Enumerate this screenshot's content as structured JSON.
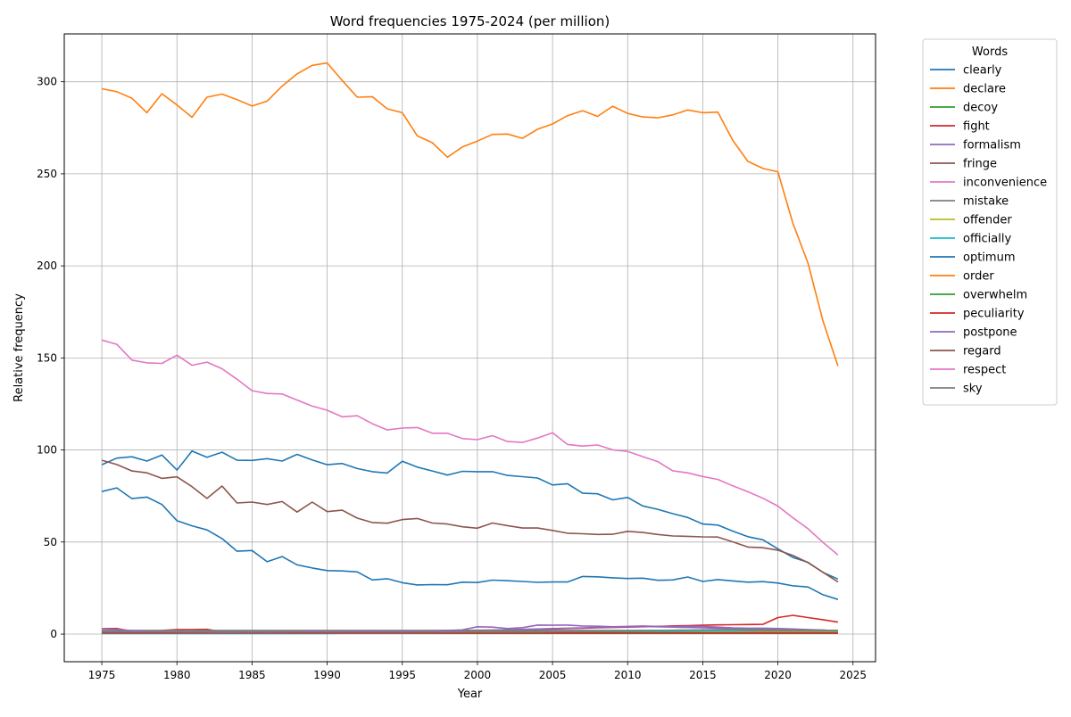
{
  "chart_data": {
    "type": "line",
    "title": "Word frequencies 1975-2024 (per million)",
    "xlabel": "Year",
    "ylabel": "Relative frequency",
    "xlim": [
      1972.5,
      2026.5
    ],
    "ylim": [
      -15,
      326
    ],
    "xticks": [
      1975,
      1980,
      1985,
      1990,
      1995,
      2000,
      2005,
      2010,
      2015,
      2020,
      2025
    ],
    "yticks": [
      0,
      50,
      100,
      150,
      200,
      250,
      300
    ],
    "grid": true,
    "legend": {
      "title": "Words",
      "placement": "outside-right"
    },
    "x": [
      1975,
      1976,
      1977,
      1978,
      1979,
      1980,
      1981,
      1982,
      1983,
      1984,
      1985,
      1986,
      1987,
      1988,
      1989,
      1990,
      1991,
      1992,
      1993,
      1994,
      1995,
      1996,
      1997,
      1998,
      1999,
      2000,
      2001,
      2002,
      2003,
      2004,
      2005,
      2006,
      2007,
      2008,
      2009,
      2010,
      2011,
      2012,
      2013,
      2014,
      2015,
      2016,
      2017,
      2018,
      2019,
      2020,
      2021,
      2022,
      2023,
      2024
    ],
    "series": [
      {
        "name": "clearly",
        "color": "#1f77b4",
        "values": [
          77.4,
          79.4,
          73.6,
          74.4,
          70.4,
          61.6,
          58.8,
          56.6,
          51.9,
          45.0,
          45.4,
          39.3,
          42.1,
          37.6,
          35.9,
          34.5,
          34.3,
          33.8,
          29.4,
          30.1,
          27.9,
          26.7,
          26.9,
          26.8,
          28.2,
          28.0,
          29.3,
          29.0,
          28.6,
          28.1,
          28.3,
          28.3,
          31.3,
          31.1,
          30.6,
          30.2,
          30.4,
          29.2,
          29.4,
          31.0,
          28.6,
          29.6,
          28.9,
          28.2,
          28.5,
          27.7,
          26.2,
          25.6,
          21.4,
          18.8
        ]
      },
      {
        "name": "declare",
        "color": "#ff7f0e",
        "values": [
          2.0,
          1.9,
          1.7,
          1.6,
          1.6,
          1.5,
          1.5,
          1.5,
          1.5,
          1.4,
          1.4,
          1.4,
          1.4,
          1.4,
          1.4,
          1.3,
          1.3,
          1.3,
          1.3,
          1.3,
          1.3,
          1.3,
          1.2,
          1.2,
          1.2,
          1.2,
          1.2,
          1.2,
          1.2,
          1.2,
          1.2,
          1.1,
          1.1,
          1.1,
          1.1,
          1.1,
          1.1,
          1.1,
          1.1,
          1.1,
          1.0,
          1.0,
          1.0,
          1.0,
          1.0,
          1.0,
          1.0,
          1.0,
          1.0,
          0.9
        ]
      },
      {
        "name": "decoy",
        "color": "#2ca02c",
        "values": [
          0.4,
          0.4,
          0.4,
          0.4,
          0.4,
          0.4,
          0.4,
          0.4,
          0.4,
          0.4,
          0.4,
          0.4,
          0.4,
          0.4,
          0.4,
          0.4,
          0.4,
          0.4,
          0.4,
          0.4,
          0.4,
          0.4,
          0.4,
          0.4,
          0.4,
          0.4,
          0.4,
          0.4,
          0.4,
          0.4,
          0.4,
          0.4,
          0.4,
          0.4,
          0.4,
          0.4,
          0.4,
          0.4,
          0.4,
          0.4,
          0.4,
          0.4,
          0.4,
          0.4,
          0.4,
          0.4,
          0.4,
          0.4,
          0.4,
          0.4
        ]
      },
      {
        "name": "fight",
        "color": "#d62728",
        "values": [
          3.0,
          3.0,
          1.5,
          1.0,
          2.0,
          2.5,
          2.5,
          2.6,
          1.2,
          0.8,
          0.9,
          0.8,
          0.8,
          0.9,
          1.0,
          1.0,
          1.2,
          1.5,
          1.6,
          1.6,
          1.6,
          1.7,
          1.8,
          1.9,
          2.0,
          2.1,
          2.2,
          2.3,
          2.5,
          2.6,
          2.8,
          3.0,
          3.2,
          3.4,
          3.6,
          3.8,
          4.0,
          4.2,
          4.4,
          4.6,
          4.8,
          5.0,
          5.1,
          5.2,
          5.3,
          9.0,
          10.2,
          9.0,
          7.8,
          6.5
        ]
      },
      {
        "name": "formalism",
        "color": "#9467bd",
        "values": [
          0.5,
          0.5,
          0.5,
          0.5,
          0.5,
          0.5,
          0.5,
          0.5,
          0.6,
          0.6,
          0.6,
          0.6,
          0.7,
          0.7,
          0.8,
          0.8,
          0.9,
          1.0,
          1.1,
          1.2,
          1.3,
          1.4,
          1.5,
          1.6,
          1.8,
          2.0,
          2.2,
          2.4,
          2.6,
          2.8,
          3.0,
          3.2,
          3.4,
          3.6,
          3.8,
          4.0,
          4.2,
          4.0,
          3.8,
          3.6,
          3.4,
          3.2,
          3.0,
          2.8,
          2.8,
          2.8,
          2.6,
          2.4,
          2.2,
          1.8
        ]
      },
      {
        "name": "fringe",
        "color": "#8c564b",
        "values": [
          1.5,
          1.5,
          1.5,
          1.5,
          1.5,
          1.5,
          1.5,
          1.5,
          1.5,
          1.5,
          1.5,
          1.5,
          1.5,
          1.6,
          1.6,
          1.6,
          1.6,
          1.6,
          1.6,
          1.6,
          1.6,
          1.6,
          1.7,
          1.7,
          1.7,
          1.7,
          1.7,
          1.7,
          1.7,
          1.7,
          1.7,
          1.8,
          1.8,
          1.8,
          1.8,
          1.8,
          1.8,
          1.8,
          1.8,
          1.8,
          1.8,
          1.9,
          1.9,
          1.9,
          1.9,
          1.9,
          1.9,
          1.9,
          1.9,
          1.9
        ]
      },
      {
        "name": "inconvenience",
        "color": "#e377c2",
        "values": [
          1.0,
          1.0,
          1.0,
          1.0,
          1.0,
          1.0,
          1.0,
          1.0,
          1.0,
          1.0,
          1.0,
          1.0,
          1.0,
          1.0,
          1.0,
          1.0,
          1.0,
          1.0,
          1.0,
          1.0,
          1.0,
          1.0,
          1.0,
          1.0,
          1.0,
          1.0,
          1.0,
          1.0,
          1.0,
          1.0,
          1.0,
          1.0,
          1.0,
          1.0,
          1.0,
          1.0,
          1.0,
          1.0,
          1.0,
          1.0,
          1.0,
          1.0,
          1.0,
          1.0,
          1.0,
          1.0,
          1.0,
          1.0,
          1.0,
          0.9
        ]
      },
      {
        "name": "mistake",
        "color": "#7f7f7f",
        "values": [
          2.0,
          2.0,
          2.0,
          2.0,
          2.0,
          2.0,
          2.0,
          2.0,
          2.0,
          2.0,
          2.0,
          2.0,
          2.0,
          2.0,
          2.0,
          2.0,
          2.0,
          2.0,
          2.0,
          2.0,
          2.0,
          2.0,
          2.0,
          2.0,
          2.0,
          2.0,
          2.0,
          2.0,
          2.0,
          2.0,
          2.0,
          2.0,
          2.0,
          2.0,
          2.0,
          2.0,
          2.0,
          2.0,
          2.0,
          2.0,
          2.0,
          2.0,
          2.0,
          2.0,
          2.0,
          2.0,
          2.0,
          2.0,
          2.0,
          2.0
        ]
      },
      {
        "name": "offender",
        "color": "#bcbd22",
        "values": [
          1.0,
          1.0,
          1.0,
          1.0,
          1.0,
          1.0,
          1.0,
          1.0,
          1.0,
          1.0,
          1.0,
          1.0,
          1.0,
          1.0,
          1.0,
          1.0,
          1.0,
          1.0,
          1.0,
          1.0,
          1.0,
          1.0,
          1.0,
          1.0,
          1.0,
          1.0,
          1.0,
          1.0,
          1.0,
          1.0,
          1.0,
          1.0,
          1.0,
          1.0,
          1.0,
          1.0,
          1.0,
          1.0,
          1.0,
          1.0,
          1.0,
          1.0,
          1.0,
          1.0,
          1.0,
          1.0,
          1.0,
          1.0,
          1.0,
          1.0
        ]
      },
      {
        "name": "officially",
        "color": "#17becf",
        "values": [
          0.3,
          0.3,
          0.3,
          0.3,
          0.3,
          0.3,
          0.3,
          0.3,
          0.3,
          0.3,
          0.3,
          0.3,
          0.3,
          0.3,
          0.3,
          0.3,
          0.4,
          0.4,
          0.4,
          0.4,
          0.4,
          0.5,
          0.5,
          0.6,
          0.6,
          0.7,
          0.7,
          0.8,
          0.8,
          0.9,
          0.9,
          1.0,
          1.0,
          1.1,
          1.2,
          1.3,
          1.4,
          1.5,
          1.6,
          1.7,
          1.8,
          1.9,
          2.0,
          2.2,
          2.4,
          3.0,
          2.5,
          2.2,
          2.0,
          1.8
        ]
      },
      {
        "name": "optimum",
        "color": "#1f77b4",
        "values": [
          92.0,
          95.6,
          96.3,
          94.0,
          97.3,
          89.1,
          99.4,
          96.0,
          98.8,
          94.4,
          94.3,
          95.3,
          94.0,
          97.6,
          94.6,
          92.0,
          92.7,
          89.9,
          88.2,
          87.5,
          93.9,
          90.7,
          88.6,
          86.4,
          88.4,
          88.2,
          88.2,
          86.2,
          85.5,
          84.8,
          81.0,
          81.7,
          76.5,
          76.2,
          72.9,
          74.2,
          69.6,
          67.8,
          65.4,
          63.3,
          59.8,
          59.2,
          55.9,
          52.9,
          51.2,
          46.3,
          41.6,
          39.0,
          33.5,
          29.9
        ]
      },
      {
        "name": "order",
        "color": "#ff7f0e",
        "values": [
          296.2,
          294.6,
          291.1,
          283.2,
          293.5,
          287.4,
          280.7,
          291.6,
          293.3,
          290.3,
          286.8,
          289.5,
          297.6,
          304.3,
          308.9,
          310.2,
          300.7,
          291.6,
          291.9,
          285.3,
          283.2,
          270.6,
          266.9,
          259.0,
          264.6,
          267.8,
          271.4,
          271.6,
          269.3,
          274.2,
          277.1,
          281.6,
          284.3,
          281.2,
          286.7,
          282.8,
          280.9,
          280.4,
          282.0,
          284.7,
          283.2,
          283.5,
          268.1,
          256.8,
          252.9,
          251.1,
          223.1,
          201.5,
          170.1,
          145.6
        ]
      },
      {
        "name": "overwhelm",
        "color": "#2ca02c",
        "values": [
          0.8,
          0.8,
          0.8,
          0.8,
          0.8,
          0.8,
          0.8,
          0.8,
          0.8,
          0.8,
          0.8,
          0.8,
          0.8,
          0.8,
          0.8,
          0.8,
          0.8,
          0.8,
          0.8,
          0.8,
          0.8,
          0.8,
          0.8,
          0.8,
          0.8,
          0.8,
          0.8,
          0.8,
          0.8,
          0.8,
          0.8,
          0.8,
          0.8,
          0.8,
          0.8,
          0.8,
          0.8,
          0.8,
          0.8,
          0.8,
          0.8,
          0.8,
          0.8,
          0.8,
          0.8,
          0.8,
          0.8,
          0.8,
          0.8,
          0.8
        ]
      },
      {
        "name": "peculiarity",
        "color": "#d62728",
        "values": [
          0.6,
          0.6,
          0.6,
          0.6,
          0.6,
          0.6,
          0.6,
          0.6,
          0.6,
          0.6,
          0.6,
          0.6,
          0.6,
          0.6,
          0.6,
          0.6,
          0.6,
          0.6,
          0.6,
          0.6,
          0.6,
          0.6,
          0.6,
          0.6,
          0.6,
          0.6,
          0.6,
          0.6,
          0.6,
          0.6,
          0.6,
          0.6,
          0.6,
          0.6,
          0.6,
          0.6,
          0.6,
          0.6,
          0.6,
          0.6,
          0.6,
          0.6,
          0.6,
          0.6,
          0.6,
          0.6,
          0.6,
          0.6,
          0.6,
          0.6
        ]
      },
      {
        "name": "postpone",
        "color": "#9467bd",
        "values": [
          3.0,
          2.6,
          1.8,
          1.5,
          1.4,
          1.3,
          1.2,
          1.1,
          1.0,
          1.0,
          1.2,
          1.1,
          1.2,
          1.4,
          1.6,
          1.5,
          1.4,
          1.5,
          1.6,
          1.5,
          1.4,
          1.5,
          1.7,
          2.0,
          2.3,
          4.0,
          3.8,
          3.0,
          3.5,
          4.9,
          4.8,
          4.9,
          4.4,
          4.3,
          4.0,
          4.2,
          4.4,
          4.2,
          4.0,
          4.3,
          4.2,
          3.8,
          3.4,
          3.2,
          3.2,
          3.0,
          2.8,
          2.4,
          2.2,
          1.8
        ]
      },
      {
        "name": "regard",
        "color": "#8c564b",
        "values": [
          94.4,
          92.1,
          88.6,
          87.6,
          84.6,
          85.4,
          80.1,
          73.7,
          80.4,
          71.2,
          71.7,
          70.4,
          72.0,
          66.3,
          71.7,
          66.5,
          67.3,
          63.0,
          60.6,
          60.2,
          62.2,
          62.8,
          60.3,
          59.8,
          58.3,
          57.5,
          60.3,
          58.9,
          57.6,
          57.6,
          56.3,
          54.8,
          54.5,
          54.1,
          54.2,
          55.8,
          55.2,
          54.1,
          53.3,
          53.1,
          52.8,
          52.7,
          50.1,
          47.3,
          46.9,
          45.6,
          42.7,
          38.8,
          33.6,
          28.3
        ]
      },
      {
        "name": "inconvenience-respect",
        "label": "respect",
        "color": "#e377c2",
        "values": [
          159.7,
          157.4,
          148.8,
          147.3,
          147.0,
          151.5,
          146.0,
          147.7,
          144.1,
          138.4,
          132.2,
          130.7,
          130.4,
          127.1,
          123.8,
          121.6,
          118.0,
          118.6,
          114.3,
          110.9,
          111.9,
          112.2,
          109.1,
          109.1,
          106.2,
          105.6,
          107.8,
          104.6,
          104.1,
          106.5,
          109.4,
          103.0,
          102.1,
          102.7,
          100.1,
          99.2,
          96.4,
          93.7,
          88.7,
          87.6,
          85.6,
          84.0,
          80.5,
          77.3,
          73.8,
          69.5,
          63.2,
          57.2,
          49.8,
          43.0
        ]
      },
      {
        "name": "sky",
        "color": "#7f7f7f",
        "values": [
          1.2,
          1.2,
          1.2,
          1.2,
          1.2,
          1.2,
          1.2,
          1.2,
          1.2,
          1.2,
          1.2,
          1.2,
          1.2,
          1.2,
          1.2,
          1.2,
          1.2,
          1.2,
          1.2,
          1.2,
          1.2,
          1.2,
          1.2,
          1.2,
          1.2,
          1.2,
          1.2,
          1.2,
          1.2,
          1.2,
          1.3,
          1.4,
          1.5,
          1.6,
          1.7,
          1.8,
          1.9,
          2.0,
          2.1,
          2.2,
          2.3,
          2.4,
          2.5,
          2.5,
          2.4,
          2.3,
          2.2,
          2.1,
          2.0,
          1.9
        ]
      }
    ]
  }
}
